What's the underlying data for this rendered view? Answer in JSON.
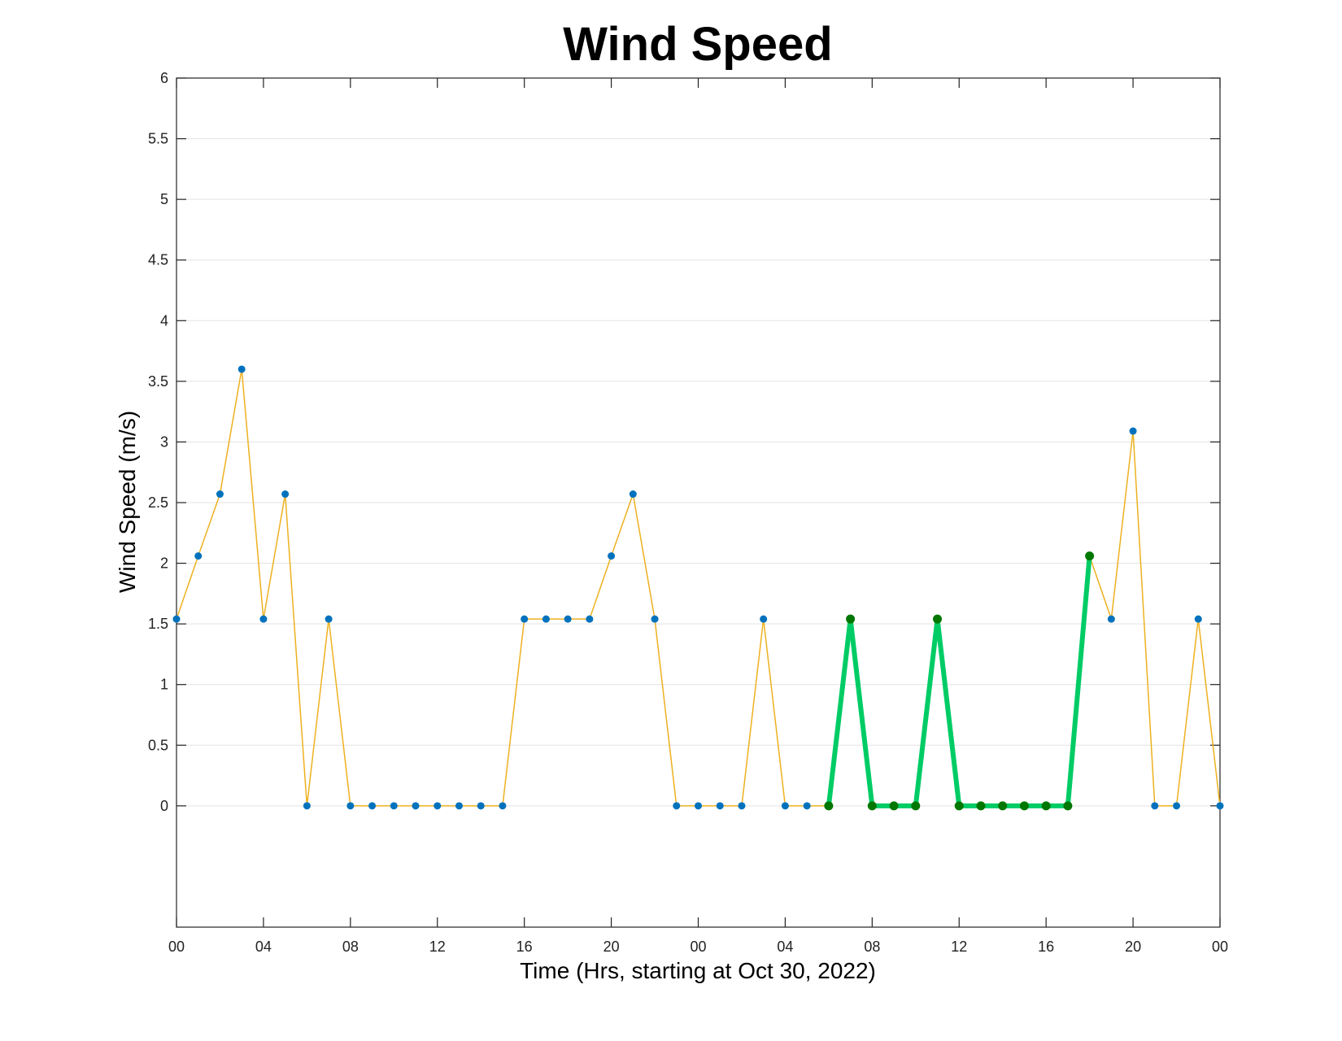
{
  "chart_data": {
    "type": "line",
    "title": "Wind Speed",
    "xlabel": "Time (Hrs, starting at Oct 30, 2022)",
    "ylabel": "Wind Speed (m/s)",
    "x_unit": "hours",
    "xlim": [
      0,
      48
    ],
    "ylim": [
      -1,
      6
    ],
    "grid": "horizontal",
    "x_ticks": [
      {
        "value": 0,
        "label": "00"
      },
      {
        "value": 4,
        "label": "04"
      },
      {
        "value": 8,
        "label": "08"
      },
      {
        "value": 12,
        "label": "12"
      },
      {
        "value": 16,
        "label": "16"
      },
      {
        "value": 20,
        "label": "20"
      },
      {
        "value": 24,
        "label": "00"
      },
      {
        "value": 28,
        "label": "04"
      },
      {
        "value": 32,
        "label": "08"
      },
      {
        "value": 36,
        "label": "12"
      },
      {
        "value": 40,
        "label": "16"
      },
      {
        "value": 44,
        "label": "20"
      },
      {
        "value": 48,
        "label": "00"
      }
    ],
    "y_ticks": [
      {
        "value": 0,
        "label": "0"
      },
      {
        "value": 0.5,
        "label": "0.5"
      },
      {
        "value": 1,
        "label": "1"
      },
      {
        "value": 1.5,
        "label": "1.5"
      },
      {
        "value": 2,
        "label": "2"
      },
      {
        "value": 2.5,
        "label": "2.5"
      },
      {
        "value": 3,
        "label": "3"
      },
      {
        "value": 3.5,
        "label": "3.5"
      },
      {
        "value": 4,
        "label": "4"
      },
      {
        "value": 4.5,
        "label": "4.5"
      },
      {
        "value": 5,
        "label": "5"
      },
      {
        "value": 5.5,
        "label": "5.5"
      },
      {
        "value": 6,
        "label": "6"
      }
    ],
    "series": [
      {
        "line_color": "#EDB120",
        "marker_color": "#0072BD",
        "x": [
          0,
          1,
          2,
          3,
          4,
          5,
          6,
          7,
          8,
          9,
          10,
          11,
          12,
          13,
          14,
          15,
          16,
          17,
          18,
          19,
          20,
          21,
          22,
          23,
          24,
          25,
          26,
          27,
          28,
          29,
          30,
          31,
          32,
          33,
          34,
          35,
          36,
          37,
          38,
          39,
          40,
          41,
          42,
          43,
          44,
          45,
          46,
          47,
          48
        ],
        "values": [
          1.54,
          2.06,
          2.57,
          3.6,
          1.54,
          2.57,
          0,
          1.54,
          0,
          0,
          0,
          0,
          0,
          0,
          0,
          0,
          1.54,
          1.54,
          1.54,
          1.54,
          2.06,
          2.57,
          1.54,
          0,
          0,
          0,
          0,
          1.54,
          0,
          0,
          0,
          1.54,
          0,
          0,
          0,
          1.54,
          0,
          0,
          0,
          0,
          0,
          0,
          2.06,
          1.54,
          3.09,
          0,
          0,
          1.54,
          0
        ]
      },
      {
        "line_color": "#00CC66",
        "marker_color": "#007700",
        "x": [
          30,
          31,
          32,
          33,
          34,
          35,
          36,
          37,
          38,
          39,
          40,
          41,
          42
        ],
        "values": [
          0,
          1.54,
          0,
          0,
          0,
          1.54,
          0,
          0,
          0,
          0,
          0,
          0,
          2.06
        ]
      }
    ]
  }
}
